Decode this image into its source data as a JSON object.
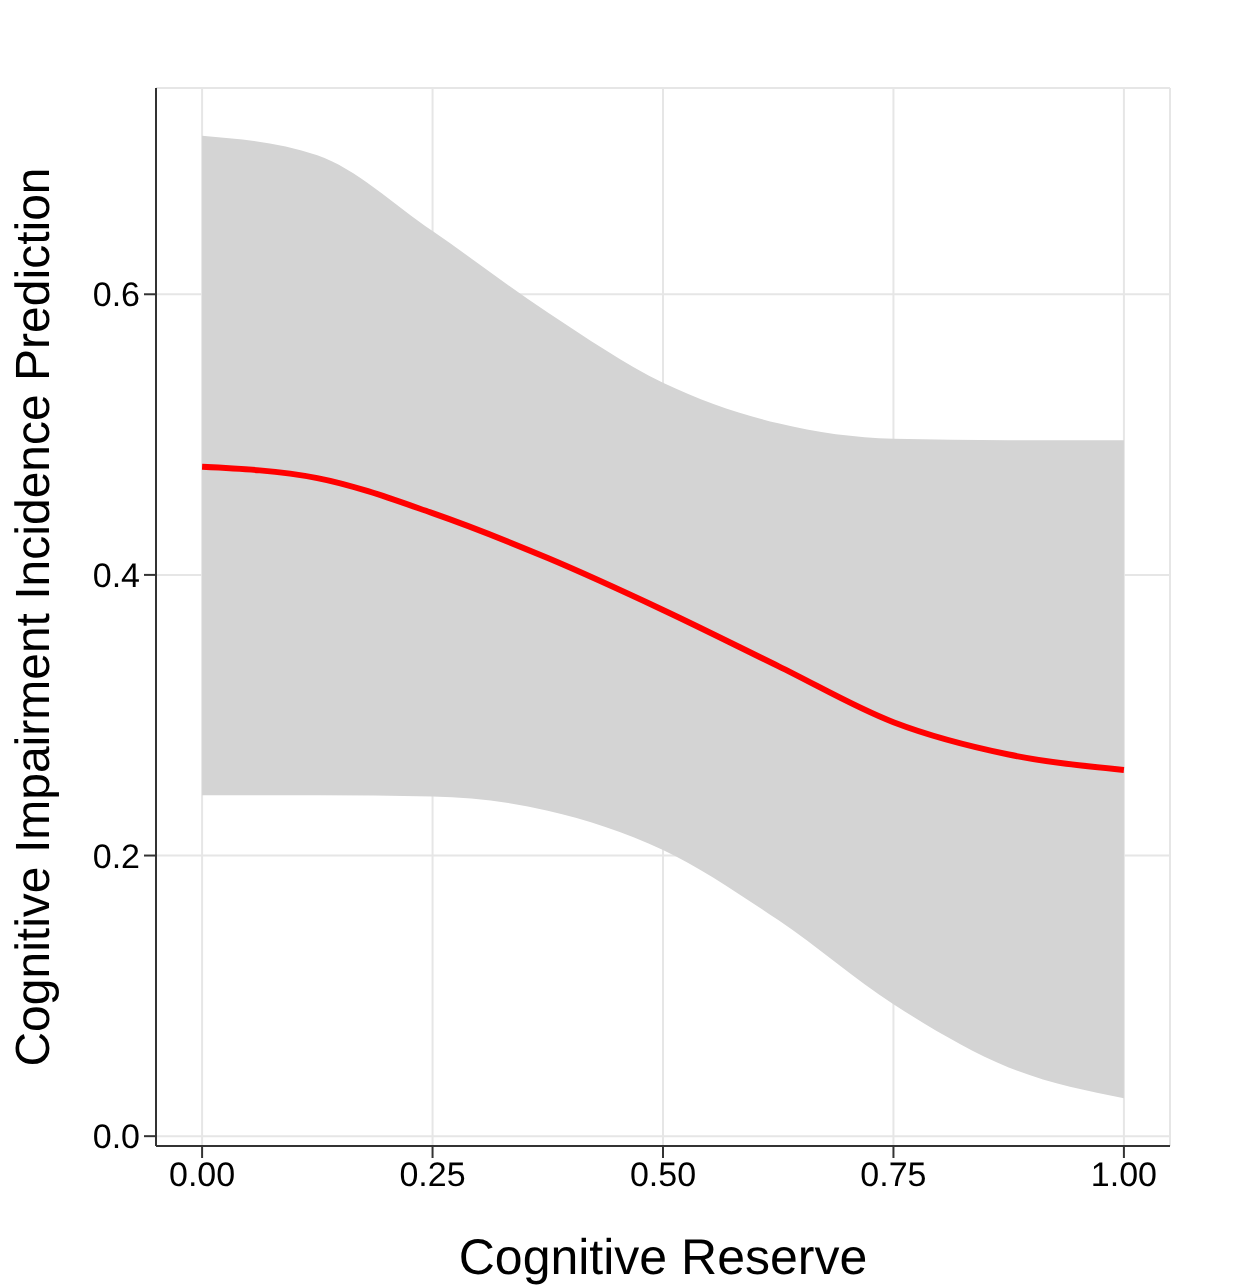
{
  "chart_data": {
    "type": "line",
    "xlabel": "Cognitive Reserve",
    "ylabel": "Cognitive Impairment Incidence Prediction",
    "x": [
      0,
      0.125,
      0.25,
      0.375,
      0.5,
      0.625,
      0.75,
      0.875,
      1
    ],
    "series": [
      {
        "color": "#ff0000",
        "values": [
          0.477,
          0.469,
          0.444,
          0.412,
          0.375,
          0.335,
          0.295,
          0.272,
          0.261
        ],
        "lower": [
          0.243,
          0.243,
          0.242,
          0.232,
          0.204,
          0.154,
          0.094,
          0.049,
          0.027
        ],
        "upper": [
          0.713,
          0.699,
          0.645,
          0.587,
          0.537,
          0.508,
          0.497,
          0.496,
          0.496
        ]
      }
    ],
    "xlim": [
      -0.05,
      1.05
    ],
    "ylim": [
      -0.007,
      0.747
    ],
    "xticks": [
      {
        "value": 0,
        "label": "0.00"
      },
      {
        "value": 0.25,
        "label": "0.25"
      },
      {
        "value": 0.5,
        "label": "0.50"
      },
      {
        "value": 0.75,
        "label": "0.75"
      },
      {
        "value": 1,
        "label": "1.00"
      }
    ],
    "yticks": [
      {
        "value": 0,
        "label": "0.0"
      },
      {
        "value": 0.2,
        "label": "0.2"
      },
      {
        "value": 0.4,
        "label": "0.4"
      },
      {
        "value": 0.6,
        "label": "0.6"
      }
    ],
    "grid": true,
    "marker": "none",
    "line_style": "solid"
  }
}
